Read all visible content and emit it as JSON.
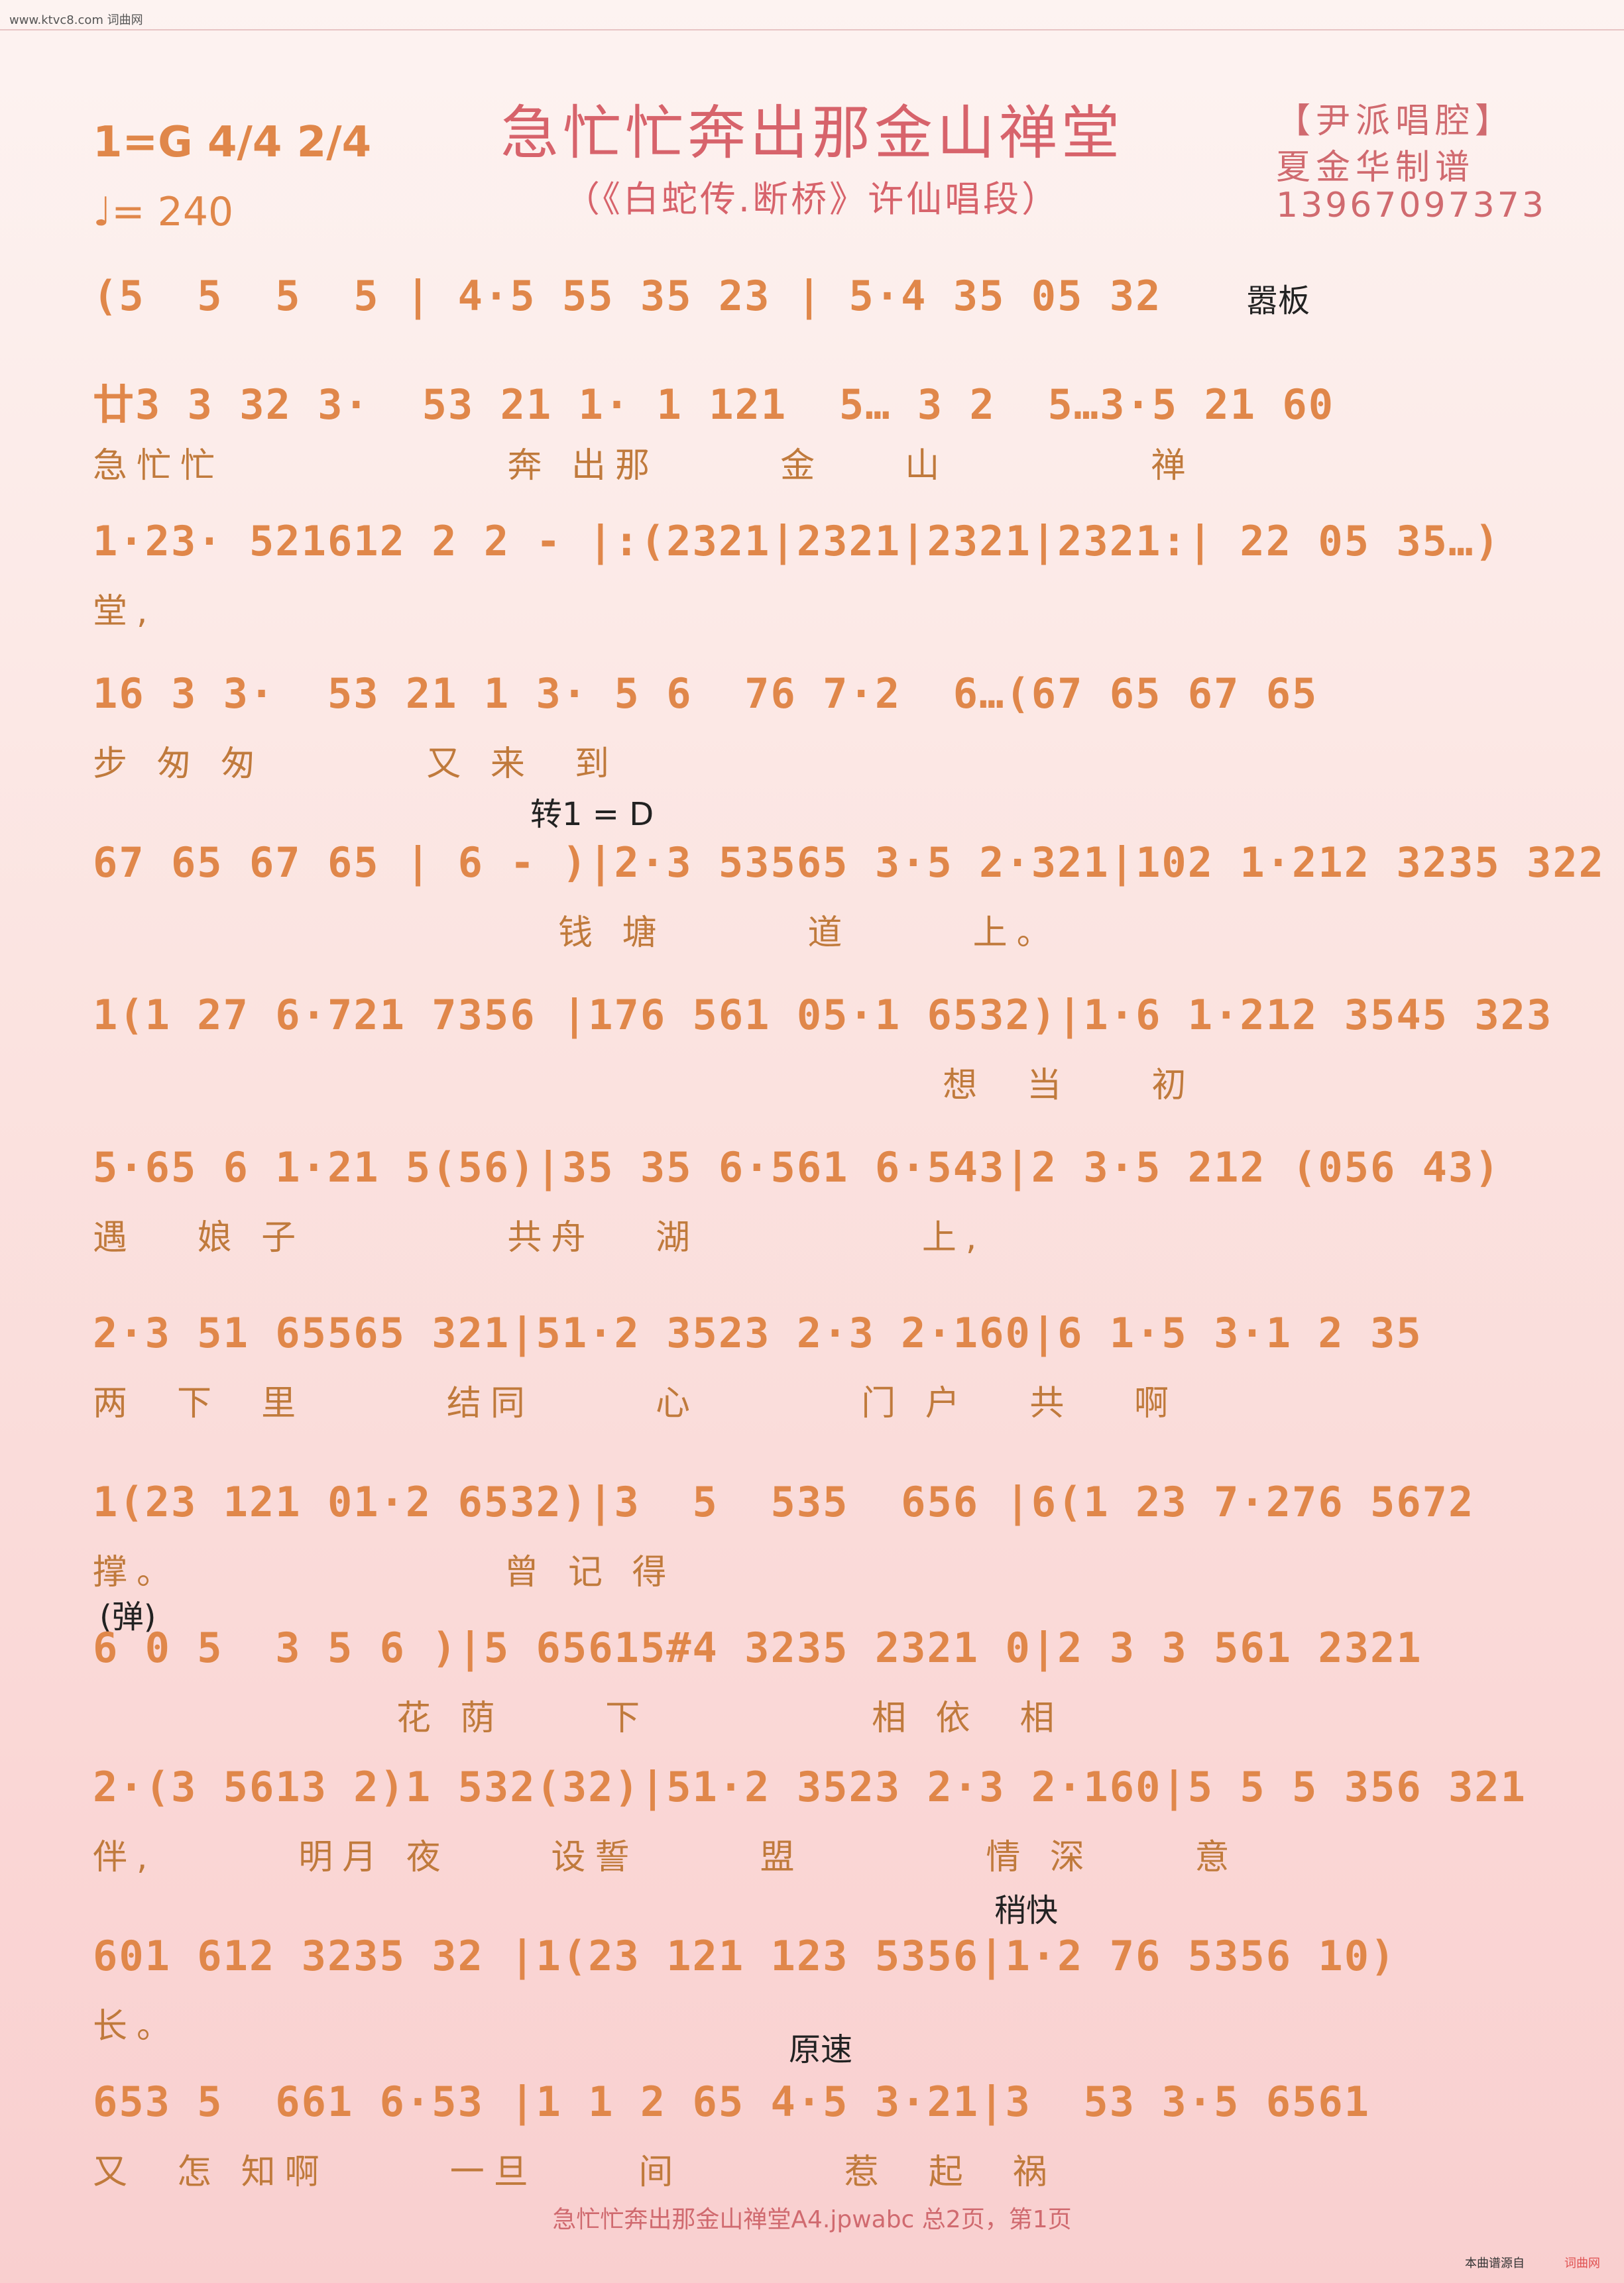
{
  "site": "www.ktvc8.com 词曲网",
  "header": {
    "title": "急忙忙奔出那金山禅堂",
    "subtitle": "（《白蛇传.断桥》许仙唱段）",
    "key": "1=G 4/4 2/4",
    "tempo": "♩= 240",
    "credit_style": "【尹派唱腔】",
    "credit_author": "夏金华制谱",
    "credit_phone": "13967097373"
  },
  "rows": [
    {
      "notes": "(5  5  5  5 | 4·5 55 35 23 | 5·4 35 05 32",
      "lyrics": "",
      "mark": "嚣板"
    },
    {
      "notes": "廿3 3 32 3·  53 21 1· 1 121  5… 3 2  5…3·5 21 60",
      "lyrics": "急忙忙              奔 出那      金    山          禅"
    },
    {
      "notes": "1·23· 521612 2 2 - |:(2321|2321|2321|2321:| 22 05 35…)",
      "lyrics": "堂,"
    },
    {
      "notes": "16 3 3·  53 21 1 3· 5 6  76 7·2  6…(67 65 67 65",
      "lyrics": "步 匆 匆        又 来  到"
    },
    {
      "notes": "67 65 67 65 | 6 - )|2·3 53565 3·5 2·321|102 1·212 3235 322",
      "lyrics": "                       钱 塘       道      上。",
      "mark": "转1 = D"
    },
    {
      "notes": "1(1 27 6·721 7356 |176 561 05·1 6532)|1·6 1·212 3545 323",
      "lyrics": "                                          想  当    初"
    },
    {
      "notes": "5·65 6 1·21 5(56)|35 35 6·561 6·543|2 3·5 212 (056 43)",
      "lyrics": "遇   娘 子          共舟   湖           上,"
    },
    {
      "notes": "2·3 51 65565 321|51·2 3523 2·3 2·160|6 1·5 3·1 2 35",
      "lyrics": "两  下  里       结同      心        门 户   共   啊"
    },
    {
      "notes": "1(23 121 01·2 6532)|3  5  535  656 |6(1 23 7·276 5672",
      "lyrics": "撑。                曾 记 得"
    },
    {
      "notes": "6 0 5  3 5 6 )|5 65615#4 3235 2321 0|2 3 3 561 2321",
      "lyrics": "               花 荫     下           相 依  相",
      "mark": "(弹)"
    },
    {
      "notes": "2·(3 5613 2)1 532(32)|51·2 3523 2·3 2·160|5 5 5 356 321",
      "lyrics": "伴,       明月 夜     设誓      盟         情 深     意"
    },
    {
      "notes": "601 612 3235 32 |1(23 121 123 5356|1·2 76 5356 10)",
      "lyrics": "长。",
      "mark": "稍快"
    },
    {
      "notes": "653 5  661 6·53 |1 1 2 65 4·5 3·21|3  53 3·5 6561",
      "lyrics": "又  怎 知啊      一旦     间        惹  起  祸",
      "mark": "原速"
    }
  ],
  "footer": "急忙忙奔出那金山禅堂A4.jpwabc  总2页，第1页",
  "brand_left": "本曲谱源自",
  "brand_right": "词曲网"
}
